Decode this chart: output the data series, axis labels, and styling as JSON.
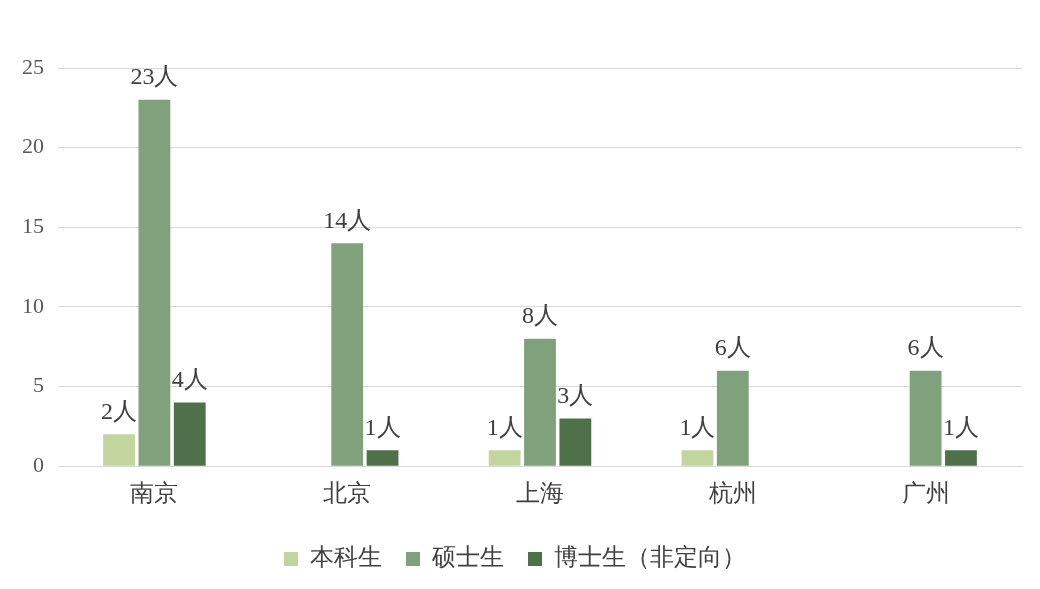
{
  "chart_data": {
    "type": "bar",
    "categories": [
      "南京",
      "北京",
      "上海",
      "杭州",
      "广州"
    ],
    "series": [
      {
        "name": "本科生",
        "color": "#c3d59f",
        "values": [
          2,
          null,
          1,
          1,
          null
        ],
        "value_labels": [
          "2人",
          null,
          "1人",
          "1人",
          null
        ]
      },
      {
        "name": "硕士生",
        "color": "#7fa27c",
        "values": [
          23,
          14,
          8,
          6,
          6
        ],
        "value_labels": [
          "23人",
          "14人",
          "8人",
          "6人",
          "6人"
        ]
      },
      {
        "name": "博士生（非定向）",
        "color": "#4f7149",
        "values": [
          4,
          1,
          3,
          null,
          1
        ],
        "value_labels": [
          "4人",
          "1人",
          "3人",
          null,
          "1人"
        ]
      }
    ],
    "ylim": [
      0,
      25
    ],
    "yticks": [
      0,
      5,
      10,
      15,
      20,
      25
    ],
    "grid": "y",
    "legend": "bottom"
  }
}
